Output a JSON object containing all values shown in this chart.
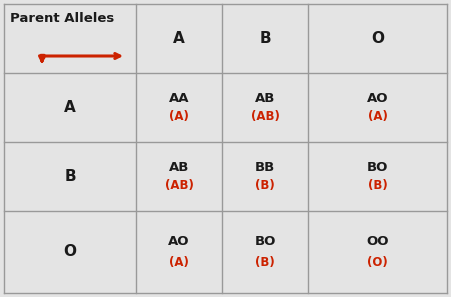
{
  "background_color": "#e4e4e4",
  "black_color": "#1a1a1a",
  "red_color": "#cc2200",
  "title_text": "Parent Alleles",
  "col_headers": [
    "A",
    "B",
    "O"
  ],
  "row_headers": [
    "A",
    "B",
    "O"
  ],
  "cell_genotypes": [
    [
      "AA",
      "AB",
      "AO"
    ],
    [
      "AB",
      "BB",
      "BO"
    ],
    [
      "AO",
      "BO",
      "OO"
    ]
  ],
  "cell_phenotypes": [
    [
      "(A)",
      "(AB)",
      "(A)"
    ],
    [
      "(AB)",
      "(B)",
      "(B)"
    ],
    [
      "(A)",
      "(B)",
      "(O)"
    ]
  ],
  "figsize": [
    4.51,
    2.97
  ],
  "dpi": 100,
  "grid_color": "#999999",
  "title_fontsize": 9.5,
  "header_fontsize": 11,
  "cell_fontsize": 9.5,
  "phenotype_fontsize": 8.5
}
